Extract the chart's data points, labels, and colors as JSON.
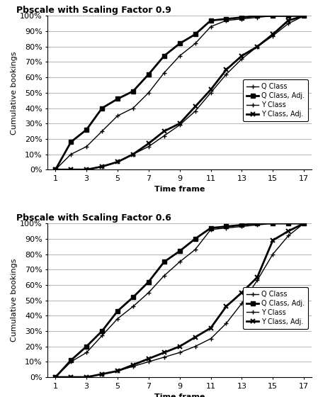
{
  "title1": "Pbscale with Scaling Factor 0.9",
  "title2": "Pbscale with Scaling Factor 0.6",
  "xlabel": "Time frame",
  "ylabel": "Cumulative bookings",
  "x": [
    1,
    2,
    3,
    4,
    5,
    6,
    7,
    8,
    9,
    10,
    11,
    12,
    13,
    14,
    15,
    16,
    17
  ],
  "chart1": {
    "Q_Class": [
      0.0,
      0.1,
      0.15,
      0.25,
      0.35,
      0.4,
      0.5,
      0.63,
      0.74,
      0.82,
      0.93,
      0.97,
      0.98,
      0.99,
      1.0,
      1.0,
      1.0
    ],
    "Q_Class_Adj": [
      0.0,
      0.18,
      0.26,
      0.4,
      0.46,
      0.51,
      0.62,
      0.74,
      0.82,
      0.88,
      0.97,
      0.98,
      0.99,
      1.0,
      1.0,
      1.0,
      1.0
    ],
    "Y_Class": [
      0.0,
      0.0,
      0.0,
      0.02,
      0.05,
      0.1,
      0.15,
      0.22,
      0.29,
      0.38,
      0.5,
      0.62,
      0.72,
      0.8,
      0.87,
      0.95,
      1.0
    ],
    "Y_Class_Adj": [
      0.0,
      0.0,
      0.0,
      0.02,
      0.05,
      0.1,
      0.17,
      0.25,
      0.3,
      0.41,
      0.52,
      0.65,
      0.74,
      0.8,
      0.88,
      0.97,
      1.0
    ]
  },
  "chart2": {
    "Q_Class": [
      0.0,
      0.1,
      0.16,
      0.27,
      0.38,
      0.46,
      0.55,
      0.66,
      0.75,
      0.83,
      0.96,
      0.97,
      0.98,
      0.99,
      1.0,
      1.0,
      1.0
    ],
    "Q_Class_Adj": [
      0.0,
      0.11,
      0.2,
      0.3,
      0.43,
      0.52,
      0.62,
      0.75,
      0.82,
      0.9,
      0.97,
      0.98,
      0.99,
      1.0,
      1.0,
      1.0,
      1.0
    ],
    "Y_Class": [
      0.0,
      0.0,
      0.0,
      0.02,
      0.04,
      0.07,
      0.1,
      0.13,
      0.16,
      0.2,
      0.25,
      0.35,
      0.48,
      0.63,
      0.8,
      0.92,
      1.0
    ],
    "Y_Class_Adj": [
      0.0,
      0.0,
      0.0,
      0.02,
      0.04,
      0.08,
      0.12,
      0.16,
      0.2,
      0.26,
      0.32,
      0.46,
      0.55,
      0.65,
      0.89,
      0.95,
      1.0
    ]
  },
  "legend_labels": [
    "Q Class",
    "Q Class, Adj.",
    "Y Class",
    "Y Class, Adj."
  ],
  "yticks": [
    0.0,
    0.1,
    0.2,
    0.3,
    0.4,
    0.5,
    0.6,
    0.7,
    0.8,
    0.9,
    1.0
  ],
  "xticks": [
    1,
    3,
    5,
    7,
    9,
    11,
    13,
    15,
    17
  ],
  "background_color": "#ffffff",
  "title_fontsize": 9,
  "axis_fontsize": 8,
  "tick_fontsize": 8,
  "legend_fontsize": 7
}
